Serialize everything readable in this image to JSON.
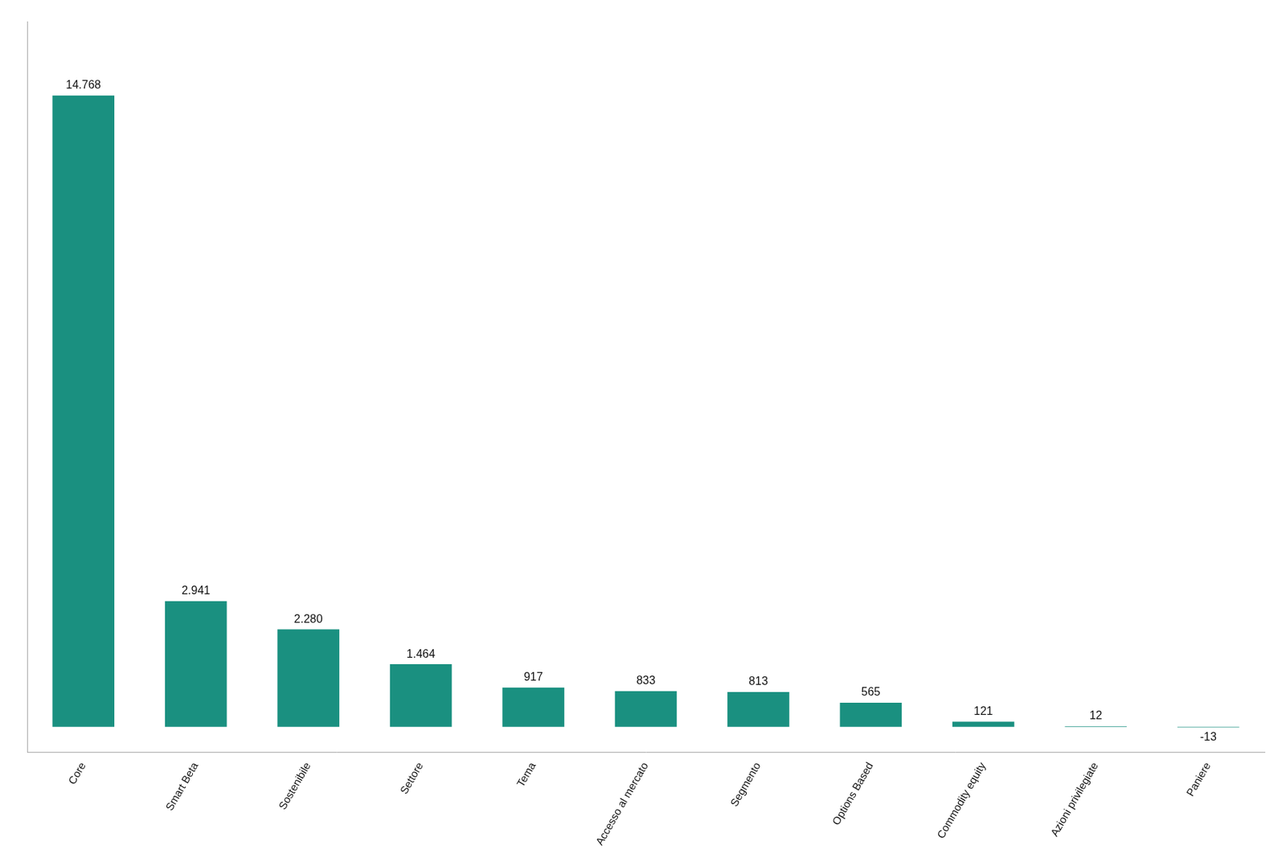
{
  "chart_data": {
    "type": "bar",
    "categories": [
      "Core",
      "Smart Beta",
      "Sostenibile",
      "Settore",
      "Tema",
      "Accesso al mercato",
      "Segmento",
      "Options Based",
      "Commodity equity",
      "Azioni privilegiate",
      "Paniere"
    ],
    "values": [
      14768,
      2941,
      2280,
      1464,
      917,
      833,
      813,
      565,
      121,
      12,
      -13
    ],
    "value_labels": [
      "14.768",
      "2.941",
      "2.280",
      "1.464",
      "917",
      "833",
      "813",
      "565",
      "121",
      "12",
      "-13"
    ],
    "color": "#1a9080",
    "ylim": [
      -600,
      16500
    ],
    "grid": false,
    "data_labels": true,
    "tick_labels": "x"
  }
}
